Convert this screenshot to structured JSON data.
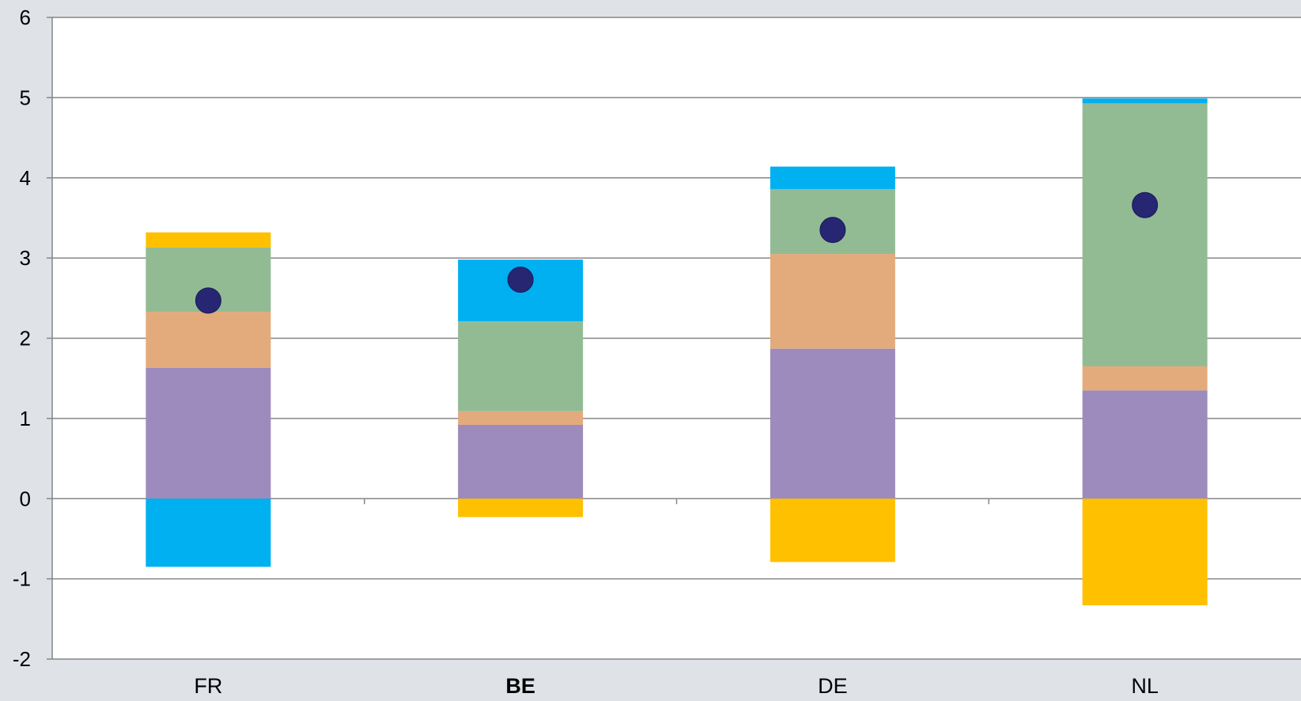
{
  "chart_data": {
    "type": "bar",
    "stacked": true,
    "categories": [
      "FR",
      "BE",
      "DE",
      "NL"
    ],
    "bold_categories": [
      "BE"
    ],
    "ylim": [
      -2,
      6
    ],
    "yticks": [
      "-2",
      "-1",
      "0",
      "1",
      "2",
      "3",
      "4",
      "5",
      "6"
    ],
    "grid": true,
    "series": [
      {
        "color": "#9e8bbd",
        "values": [
          1.63,
          0.92,
          1.87,
          1.35
        ]
      },
      {
        "color": "#e3ab7c",
        "values": [
          0.7,
          0.17,
          1.18,
          0.3
        ]
      },
      {
        "color": "#92bb94",
        "values": [
          0.8,
          1.12,
          0.81,
          3.28
        ]
      },
      {
        "color": "#00b0f0",
        "values": [
          -0.85,
          0.77,
          0.28,
          0.06
        ]
      },
      {
        "color": "#ffc000",
        "values": [
          0.19,
          -0.23,
          -0.79,
          -1.33
        ]
      }
    ],
    "markers": {
      "color": "#262673",
      "values": [
        2.47,
        2.73,
        3.35,
        3.66
      ]
    }
  }
}
